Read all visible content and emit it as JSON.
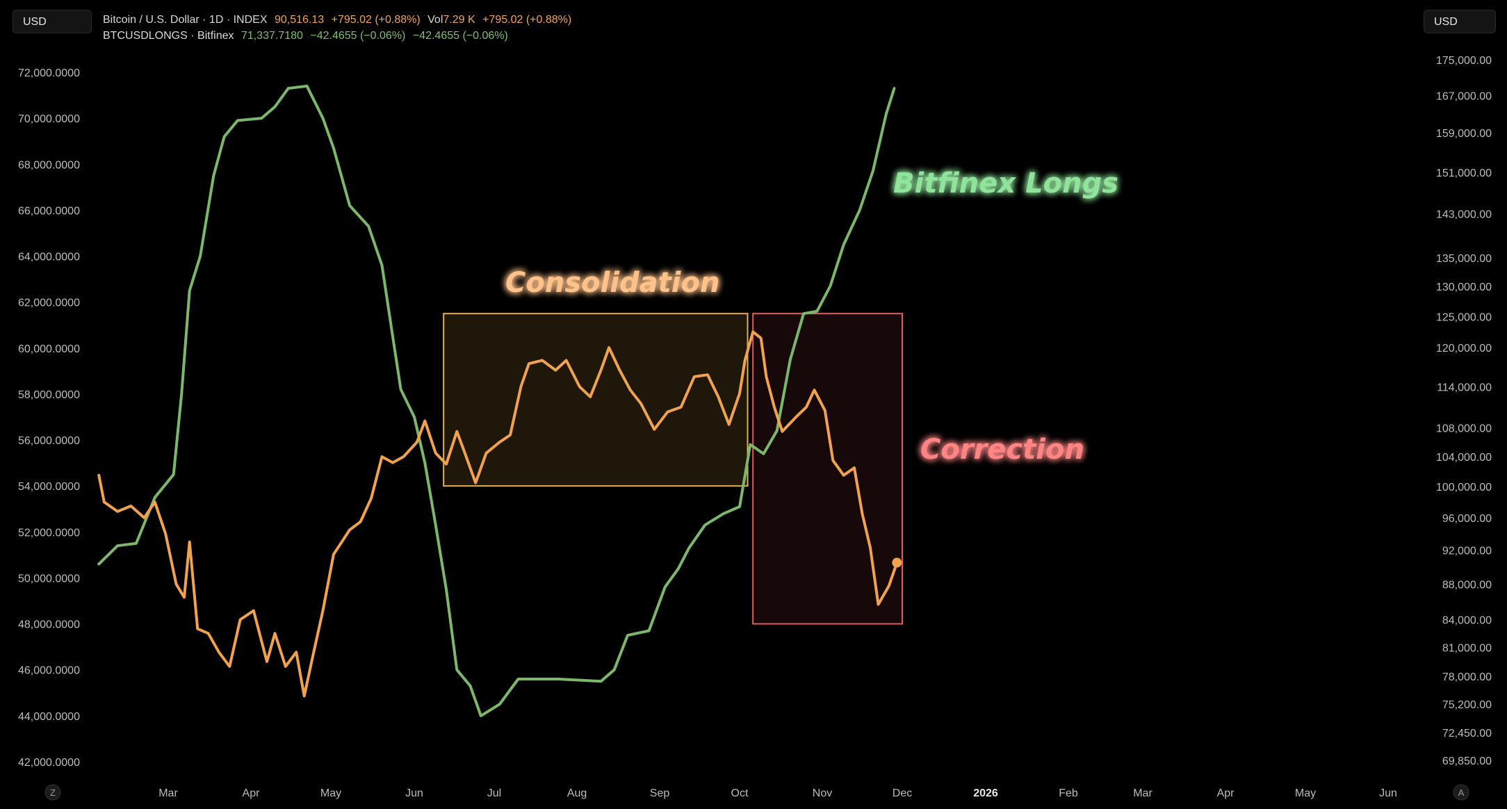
{
  "currency_left": "USD",
  "currency_right": "USD",
  "legend": {
    "btc": {
      "name": "Bitcoin / U.S. Dollar · 1D · INDEX",
      "price": "90,516.13",
      "change": "+795.02 (+0.88%)",
      "vol_label": "Vol",
      "vol": "7.29 K",
      "change2": "+795.02 (+0.88%)"
    },
    "longs": {
      "name": "BTCUSDLONGS · Bitfinex",
      "price": "71,337.7180",
      "change": "−42.4655 (−0.06%)",
      "change2": "−42.4655 (−0.06%)"
    }
  },
  "axis_buttons": {
    "left": "Z",
    "right": "A"
  },
  "chart_data": {
    "type": "line",
    "x_axis_ticks": [
      "Mar",
      "Apr",
      "May",
      "Jun",
      "Jul",
      "Aug",
      "Sep",
      "Oct",
      "Nov",
      "Dec",
      "2026",
      "Feb",
      "Mar",
      "Apr",
      "May",
      "Jun"
    ],
    "left_axis": {
      "series": "BTCUSDLONGS",
      "ticks": [
        "72,000.0000",
        "70,000.0000",
        "68,000.0000",
        "66,000.0000",
        "64,000.0000",
        "62,000.0000",
        "60,000.0000",
        "58,000.0000",
        "56,000.0000",
        "54,000.0000",
        "52,000.0000",
        "50,000.0000",
        "48,000.0000",
        "46,000.0000",
        "44,000.0000",
        "42,000.0000"
      ],
      "range": [
        42000,
        72000
      ]
    },
    "right_axis": {
      "series": "Bitcoin / U.S. Dollar",
      "scale": "log",
      "ticks": [
        "175,000.00",
        "167,000.00",
        "159,000.00",
        "151,000.00",
        "143,000.00",
        "135,000.00",
        "130,000.00",
        "125,000.00",
        "120,000.00",
        "114,000.00",
        "108,000.00",
        "104,000.00",
        "100,000.00",
        "96,000.00",
        "92,000.00",
        "88,000.00",
        "84,000.00",
        "81,000.00",
        "78,000.00",
        "75,200.00",
        "72,450.00",
        "69,850.00"
      ]
    },
    "series": [
      {
        "name": "BTCUSDLONGS",
        "color": "#7cb86a",
        "axis": "left",
        "points": [
          [
            "2025-02-03",
            50600
          ],
          [
            "2025-02-10",
            51400
          ],
          [
            "2025-02-17",
            51500
          ],
          [
            "2025-02-24",
            53500
          ],
          [
            "2025-03-03",
            54500
          ],
          [
            "2025-03-06",
            58000
          ],
          [
            "2025-03-09",
            62500
          ],
          [
            "2025-03-13",
            64000
          ],
          [
            "2025-03-18",
            67500
          ],
          [
            "2025-03-22",
            69200
          ],
          [
            "2025-03-27",
            69900
          ],
          [
            "2025-04-05",
            70000
          ],
          [
            "2025-04-10",
            70500
          ],
          [
            "2025-04-15",
            71300
          ],
          [
            "2025-04-22",
            71400
          ],
          [
            "2025-04-28",
            70000
          ],
          [
            "2025-05-02",
            68700
          ],
          [
            "2025-05-08",
            66200
          ],
          [
            "2025-05-15",
            65300
          ],
          [
            "2025-05-20",
            63600
          ],
          [
            "2025-05-24",
            60500
          ],
          [
            "2025-05-27",
            58200
          ],
          [
            "2025-06-01",
            57000
          ],
          [
            "2025-06-05",
            55000
          ],
          [
            "2025-06-09",
            52300
          ],
          [
            "2025-06-13",
            49500
          ],
          [
            "2025-06-17",
            46000
          ],
          [
            "2025-06-22",
            45300
          ],
          [
            "2025-06-26",
            44000
          ],
          [
            "2025-07-03",
            44500
          ],
          [
            "2025-07-10",
            45600
          ],
          [
            "2025-07-25",
            45600
          ],
          [
            "2025-08-10",
            45500
          ],
          [
            "2025-08-15",
            46000
          ],
          [
            "2025-08-20",
            47500
          ],
          [
            "2025-08-28",
            47700
          ],
          [
            "2025-09-03",
            49600
          ],
          [
            "2025-09-08",
            50400
          ],
          [
            "2025-09-12",
            51300
          ],
          [
            "2025-09-18",
            52300
          ],
          [
            "2025-09-25",
            52800
          ],
          [
            "2025-10-01",
            53100
          ],
          [
            "2025-10-05",
            55800
          ],
          [
            "2025-10-10",
            55400
          ],
          [
            "2025-10-15",
            56400
          ],
          [
            "2025-10-20",
            59500
          ],
          [
            "2025-10-25",
            61500
          ],
          [
            "2025-10-30",
            61600
          ],
          [
            "2025-11-04",
            62700
          ],
          [
            "2025-11-09",
            64500
          ],
          [
            "2025-11-15",
            66000
          ],
          [
            "2025-11-20",
            67700
          ],
          [
            "2025-11-25",
            70200
          ],
          [
            "2025-11-28",
            71300
          ]
        ]
      },
      {
        "name": "Bitcoin / U.S. Dollar",
        "color": "#f0a24f",
        "axis": "right",
        "points": [
          [
            "2025-02-03",
            101500
          ],
          [
            "2025-02-05",
            98000
          ],
          [
            "2025-02-10",
            96800
          ],
          [
            "2025-02-15",
            97500
          ],
          [
            "2025-02-20",
            96000
          ],
          [
            "2025-02-24",
            98000
          ],
          [
            "2025-02-28",
            94000
          ],
          [
            "2025-03-04",
            88000
          ],
          [
            "2025-03-07",
            86500
          ],
          [
            "2025-03-09",
            93000
          ],
          [
            "2025-03-12",
            83000
          ],
          [
            "2025-03-16",
            82500
          ],
          [
            "2025-03-20",
            80500
          ],
          [
            "2025-03-24",
            79000
          ],
          [
            "2025-03-28",
            84000
          ],
          [
            "2025-04-02",
            85000
          ],
          [
            "2025-04-07",
            79500
          ],
          [
            "2025-04-10",
            82500
          ],
          [
            "2025-04-14",
            79000
          ],
          [
            "2025-04-18",
            80500
          ],
          [
            "2025-04-21",
            76000
          ],
          [
            "2025-04-24",
            79800
          ],
          [
            "2025-04-28",
            85000
          ],
          [
            "2025-05-02",
            91500
          ],
          [
            "2025-05-08",
            94500
          ],
          [
            "2025-05-12",
            95500
          ],
          [
            "2025-05-16",
            98500
          ],
          [
            "2025-05-20",
            104000
          ],
          [
            "2025-05-24",
            103200
          ],
          [
            "2025-05-28",
            104000
          ],
          [
            "2025-06-02",
            106000
          ],
          [
            "2025-06-05",
            109000
          ],
          [
            "2025-06-09",
            104500
          ],
          [
            "2025-06-13",
            103000
          ],
          [
            "2025-06-17",
            107500
          ],
          [
            "2025-06-20",
            104500
          ],
          [
            "2025-06-24",
            100500
          ],
          [
            "2025-06-28",
            104500
          ],
          [
            "2025-07-03",
            106000
          ],
          [
            "2025-07-07",
            107000
          ],
          [
            "2025-07-11",
            114000
          ],
          [
            "2025-07-14",
            117500
          ],
          [
            "2025-07-19",
            118000
          ],
          [
            "2025-07-24",
            116500
          ],
          [
            "2025-07-28",
            118000
          ],
          [
            "2025-08-02",
            114000
          ],
          [
            "2025-08-06",
            112500
          ],
          [
            "2025-08-10",
            116500
          ],
          [
            "2025-08-13",
            120000
          ],
          [
            "2025-08-17",
            116500
          ],
          [
            "2025-08-21",
            113500
          ],
          [
            "2025-08-25",
            111500
          ],
          [
            "2025-08-30",
            107800
          ],
          [
            "2025-09-04",
            110300
          ],
          [
            "2025-09-09",
            111000
          ],
          [
            "2025-09-14",
            115500
          ],
          [
            "2025-09-19",
            115800
          ],
          [
            "2025-09-23",
            112500
          ],
          [
            "2025-09-27",
            108500
          ],
          [
            "2025-10-01",
            113000
          ],
          [
            "2025-10-03",
            118000
          ],
          [
            "2025-10-06",
            122500
          ],
          [
            "2025-10-09",
            121500
          ],
          [
            "2025-10-11",
            115500
          ],
          [
            "2025-10-14",
            111000
          ],
          [
            "2025-10-17",
            107500
          ],
          [
            "2025-10-22",
            109500
          ],
          [
            "2025-10-26",
            111000
          ],
          [
            "2025-10-29",
            113500
          ],
          [
            "2025-11-02",
            110500
          ],
          [
            "2025-11-05",
            103500
          ],
          [
            "2025-11-09",
            101500
          ],
          [
            "2025-11-13",
            102500
          ],
          [
            "2025-11-16",
            96500
          ],
          [
            "2025-11-19",
            92300
          ],
          [
            "2025-11-22",
            85700
          ],
          [
            "2025-11-26",
            87800
          ],
          [
            "2025-11-29",
            90516
          ]
        ]
      }
    ],
    "annotations": [
      {
        "label": "Bitfinex Longs",
        "color": "#8fe39a"
      },
      {
        "label": "Consolidation",
        "color": "#ffc28a",
        "box_color": "#e8b04c",
        "box_from": "2025-06-12",
        "box_to": "2025-10-04",
        "box_y_range": [
          54000,
          61500
        ]
      },
      {
        "label": "Correction",
        "color": "#ff8585",
        "box_color": "#e35b5b",
        "box_from": "2025-10-06",
        "box_to": "2025-12-01",
        "box_y_range": [
          48000,
          61500
        ]
      }
    ]
  }
}
